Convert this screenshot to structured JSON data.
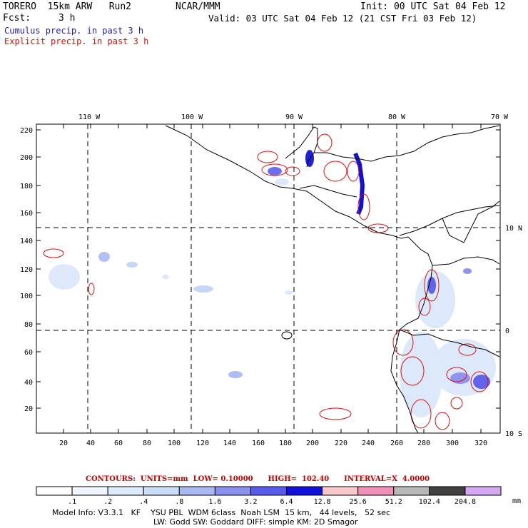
{
  "header": {
    "model": "TORERO  15km ARW   Run2",
    "org": "NCAR/MMM",
    "init": "Init: 00 UTC Sat 04 Feb 12",
    "fcst_label": "Fcst:",
    "fcst_value": "3 h",
    "valid": "Valid: 03 UTC Sat 04 Feb 12 (21 CST Fri 03 Feb 12)"
  },
  "legend_lines": {
    "cumulus": "Cumulus precip. in past 3 h",
    "explicit": "Explicit precip. in past 3 h",
    "cumulus_color": "#1f1fa8",
    "explicit_color": "#e01010"
  },
  "axes": {
    "top_labels": [
      "110 W",
      "100 W",
      "90 W",
      "80 W",
      "70 W"
    ],
    "right_labels": [
      "10 N",
      "0",
      "10 S"
    ],
    "left_ticks": [
      "20",
      "40",
      "60",
      "80",
      "100",
      "120",
      "140",
      "160",
      "180",
      "200",
      "220"
    ],
    "bottom_ticks": [
      "20",
      "40",
      "60",
      "80",
      "100",
      "120",
      "140",
      "160",
      "180",
      "200",
      "220",
      "240",
      "260",
      "280",
      "300",
      "320"
    ]
  },
  "contour_info": {
    "text": "CONTOURS:  UNITS=mm  LOW= 0.10000      HIGH=  102.40      INTERVAL=X  4.0000"
  },
  "colorbar": {
    "labels": [
      ".1",
      ".2",
      ".4",
      ".8",
      "1.6",
      "3.2",
      "6.4",
      "12.8",
      "25.6",
      "51.2",
      "102.4",
      "204.8"
    ],
    "unit": "mm",
    "colors": [
      "#ffffff",
      "#eef5ff",
      "#dcebfb",
      "#c9ddf7",
      "#aab8f2",
      "#8a90ee",
      "#5a5aea",
      "#1010d8",
      "#f8c8c8",
      "#f090b8",
      "#b8b8b8",
      "#404040",
      "#d4a8f0"
    ]
  },
  "footer": {
    "line1": "Model Info: V3.3.1   KF    YSU PBL  WDM 6class  Noah LSM  15 km,   44 levels,   52 sec",
    "line2": "LW: Godd SW: Goddard DIFF: simple KM: 2D Smagor"
  }
}
